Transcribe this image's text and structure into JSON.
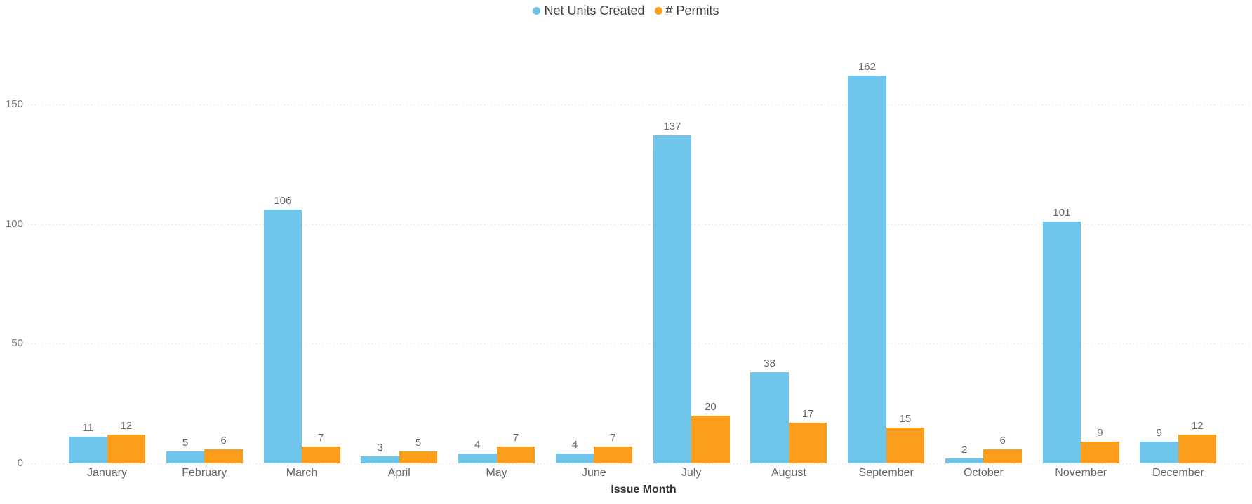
{
  "chart_data": {
    "type": "bar",
    "title": "",
    "categories": [
      "January",
      "February",
      "March",
      "April",
      "May",
      "June",
      "July",
      "August",
      "September",
      "October",
      "November",
      "December"
    ],
    "series": [
      {
        "name": "Net Units Created",
        "color": "#6FC4E9",
        "values": [
          11,
          5,
          106,
          3,
          4,
          4,
          137,
          38,
          162,
          2,
          101,
          9
        ]
      },
      {
        "name": "# Permits",
        "color": "#FC9E1B",
        "values": [
          12,
          6,
          7,
          5,
          7,
          7,
          20,
          17,
          15,
          6,
          9,
          12
        ]
      }
    ],
    "xlabel": "Issue Month",
    "ylabel": "",
    "y_ticks": [
      0,
      50,
      100,
      150
    ],
    "ylim": [
      0,
      180
    ],
    "grid": "dotted-horizontal",
    "gridline_color": "#D9D9D9",
    "legend_position": "top-center",
    "data_labels": true,
    "data_label_color": "#666666",
    "axis_label_color": "#777777",
    "category_label_color": "#666666",
    "legend_text_color": "#404040",
    "background_color": "#FFFFFF"
  }
}
